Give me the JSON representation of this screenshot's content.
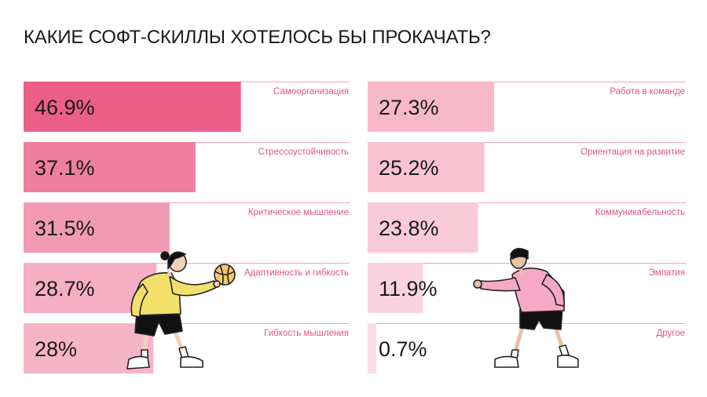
{
  "title": "КАКИЕ СОФТ-СКИЛЛЫ ХОТЕЛОСЬ БЫ ПРОКАЧАТЬ?",
  "chart_data": {
    "type": "bar",
    "unit": "%",
    "scale_max": 50,
    "series": [
      {
        "name": "left-column",
        "color": "#ec5f88",
        "items": [
          {
            "label": "Самоорганизация",
            "value": 46.9,
            "value_label": "46.9%",
            "color": "#ec5f88"
          },
          {
            "label": "Стрессоустойчивость",
            "value": 37.1,
            "value_label": "37.1%",
            "color": "#ee7fa0"
          },
          {
            "label": "Критическое мышление",
            "value": 31.5,
            "value_label": "31.5%",
            "color": "#f29ab4"
          },
          {
            "label": "Адаптивность и гибкость",
            "value": 28.7,
            "value_label": "28.7%",
            "color": "#f5aec3"
          },
          {
            "label": "Гибкость мышления",
            "value": 28,
            "value_label": "28%",
            "color": "#f6b4c7"
          }
        ]
      },
      {
        "name": "right-column",
        "color": "#f7c3d2",
        "items": [
          {
            "label": "Работа в команде",
            "value": 27.3,
            "value_label": "27.3%",
            "color": "#f7b8ca"
          },
          {
            "label": "Ориентация на развитие",
            "value": 25.2,
            "value_label": "25.2%",
            "color": "#f8c3d2"
          },
          {
            "label": "Коммуникабельность",
            "value": 23.8,
            "value_label": "23.8%",
            "color": "#f9cbd8"
          },
          {
            "label": "Эмпатия",
            "value": 11.9,
            "value_label": "11.9%",
            "color": "#fad3df"
          },
          {
            "label": "Другое",
            "value": 0.7,
            "value_label": "0.7%",
            "color": "#fbdde6"
          }
        ]
      }
    ]
  },
  "colors": {
    "text_dark": "#1a1a1a",
    "label_pink": "#e2557f",
    "line": "#f3a3bc"
  }
}
